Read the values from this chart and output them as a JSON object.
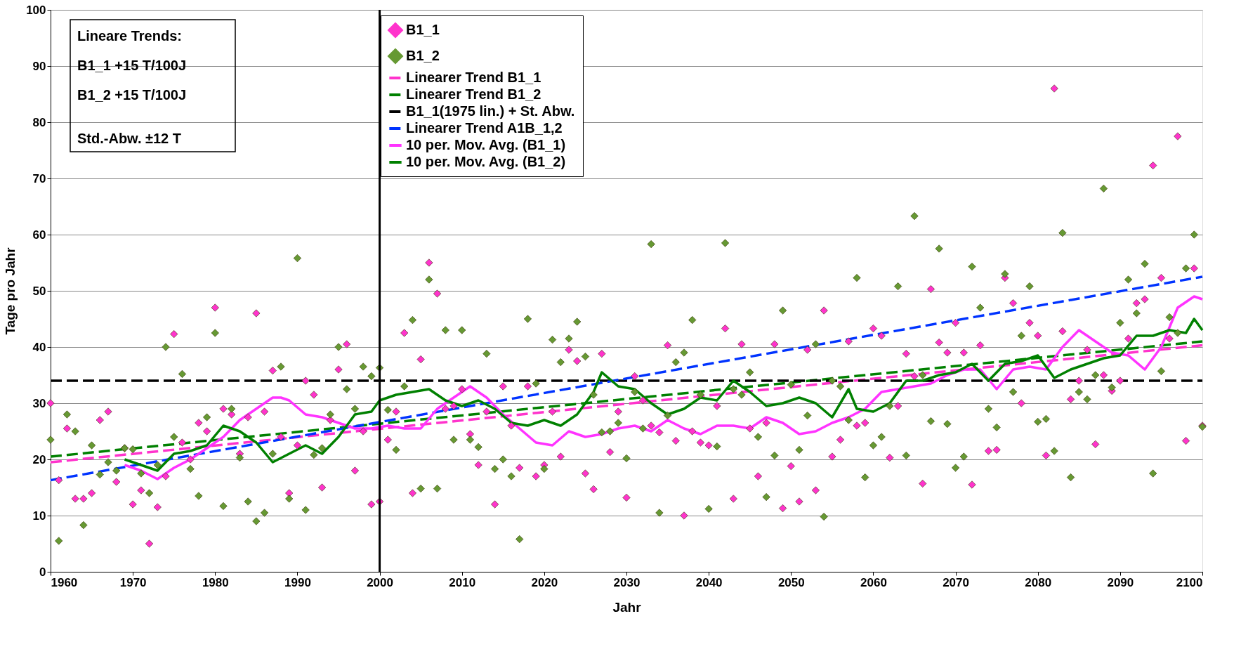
{
  "chart_data": {
    "type": "scatter",
    "xlabel": "Jahr",
    "ylabel": "Tage pro Jahr",
    "x": [
      1960,
      1961,
      1962,
      1963,
      1964,
      1965,
      1966,
      1967,
      1968,
      1969,
      1970,
      1971,
      1972,
      1973,
      1974,
      1975,
      1976,
      1977,
      1978,
      1979,
      1980,
      1981,
      1982,
      1983,
      1984,
      1985,
      1986,
      1987,
      1988,
      1989,
      1990,
      1991,
      1992,
      1993,
      1994,
      1995,
      1996,
      1997,
      1998,
      1999,
      2000,
      2001,
      2002,
      2003,
      2004,
      2005,
      2006,
      2007,
      2008,
      2009,
      2010,
      2011,
      2012,
      2013,
      2014,
      2015,
      2016,
      2017,
      2018,
      2019,
      2020,
      2021,
      2022,
      2023,
      2024,
      2025,
      2026,
      2027,
      2028,
      2029,
      2030,
      2031,
      2032,
      2033,
      2034,
      2035,
      2036,
      2037,
      2038,
      2039,
      2040,
      2041,
      2042,
      2043,
      2044,
      2045,
      2046,
      2047,
      2048,
      2049,
      2050,
      2051,
      2052,
      2053,
      2054,
      2055,
      2056,
      2057,
      2058,
      2059,
      2060,
      2061,
      2062,
      2063,
      2064,
      2065,
      2066,
      2067,
      2068,
      2069,
      2070,
      2071,
      2072,
      2073,
      2074,
      2075,
      2076,
      2077,
      2078,
      2079,
      2080,
      2081,
      2082,
      2083,
      2084,
      2085,
      2086,
      2087,
      2088,
      2089,
      2090,
      2091,
      2092,
      2093,
      2094,
      2095,
      2096,
      2097,
      2098,
      2099,
      2100
    ],
    "series": [
      {
        "name": "B1_1",
        "marker": "diamond",
        "color": "#ff33cc",
        "values": [
          30,
          16.3,
          25.5,
          13,
          13,
          14,
          27,
          28.5,
          16,
          22,
          12,
          14.5,
          5,
          11.5,
          17,
          42.3,
          23,
          20,
          26.5,
          25,
          47,
          29,
          28,
          21,
          27.5,
          46,
          28.5,
          35.8,
          24,
          14,
          22.5,
          34,
          31.5,
          15,
          27,
          36,
          40.5,
          18,
          25,
          12,
          12.5,
          23.5,
          28.5,
          42.5,
          14,
          37.8,
          55,
          49.5,
          29,
          29.5,
          32.5,
          24.5,
          19,
          28.5,
          12,
          33,
          26,
          18.5,
          33,
          17,
          19,
          28.5,
          20.5,
          39.5,
          37.5,
          17.5,
          14.7,
          38.8,
          21.3,
          28.5,
          13.2,
          34.8,
          30.5,
          26,
          24.8,
          40.3,
          23.3,
          10,
          25,
          23,
          22.5,
          29.5,
          43.3,
          13,
          40.5,
          25.5,
          17,
          26.5,
          40.5,
          11.3,
          18.8,
          12.5,
          39.5,
          14.5,
          46.5,
          20.5,
          23.5,
          41,
          26,
          26.5,
          43.3,
          42,
          20.3,
          29.5,
          38.8,
          34.8,
          15.7,
          50.3,
          40.8,
          39,
          44.3,
          39,
          15.5,
          40.3,
          21.5,
          21.7,
          52.3,
          47.8,
          30,
          44.3,
          42,
          20.7,
          86,
          42.8,
          30.7,
          34,
          39.5,
          22.7,
          35,
          32.2,
          34,
          41.5,
          47.8,
          48.5,
          72.3,
          52.3,
          41.5,
          77.5,
          23.3,
          54,
          26
        ]
      },
      {
        "name": "B1_2",
        "marker": "diamond",
        "color": "#669933",
        "values": [
          23.5,
          5.5,
          28,
          25,
          8.3,
          22.5,
          17.3,
          19.5,
          18,
          22,
          21.8,
          17.5,
          14,
          19,
          40,
          24,
          35.2,
          18.3,
          13.5,
          27.5,
          42.5,
          11.7,
          29,
          20.3,
          12.5,
          9,
          10.5,
          21,
          36.5,
          13,
          55.8,
          11,
          20.8,
          22,
          28,
          40,
          32.5,
          29,
          36.5,
          34.8,
          36.3,
          28.8,
          21.7,
          33,
          44.8,
          14.8,
          52,
          14.8,
          43,
          23.5,
          43,
          23.5,
          22.2,
          38.8,
          18.3,
          20,
          17,
          5.8,
          45,
          33.5,
          18.3,
          41.3,
          37.3,
          41.5,
          44.5,
          38.3,
          31.5,
          24.8,
          25,
          26.5,
          20.2,
          32,
          25.5,
          58.3,
          10.5,
          27.8,
          37.3,
          39,
          44.8,
          31.5,
          11.2,
          22.3,
          58.5,
          32.5,
          31.5,
          35.5,
          24,
          13.3,
          20.7,
          46.5,
          33.3,
          21.7,
          27.8,
          40.5,
          9.8,
          34,
          33,
          27,
          52.3,
          16.8,
          22.5,
          24,
          29.5,
          50.8,
          20.7,
          63.3,
          35,
          26.8,
          57.5,
          26.3,
          18.5,
          20.5,
          54.3,
          47,
          29,
          25.7,
          53,
          32,
          42,
          50.8,
          26.7,
          27.2,
          21.5,
          60.3,
          16.8,
          32,
          30.7,
          35,
          68.2,
          32.8,
          44.3,
          52,
          46,
          54.8,
          17.5,
          35.7,
          45.3,
          42.5,
          54,
          60,
          25.8
        ]
      },
      {
        "name": "Linearer Trend B1_1",
        "type": "line",
        "line_style": "dashed",
        "color": "#ff33cc",
        "x": [
          1960,
          2100
        ],
        "values": [
          19.5,
          40.3
        ]
      },
      {
        "name": "Linearer Trend B1_2",
        "type": "line",
        "line_style": "dashed",
        "color": "#008000",
        "x": [
          1960,
          2100
        ],
        "values": [
          20.5,
          41
        ]
      },
      {
        "name": "B1_1(1975 lin.) + St. Abw.",
        "type": "line",
        "line_style": "dashed",
        "color": "#000000",
        "x": [
          1960,
          2100
        ],
        "values": [
          34,
          34
        ]
      },
      {
        "name": "Linearer Trend A1B_1,2",
        "type": "line",
        "line_style": "dashed",
        "color": "#0033ff",
        "x": [
          1960,
          2100
        ],
        "values": [
          16.3,
          52.5
        ]
      },
      {
        "name": "10 per. Mov. Avg. (B1_1)",
        "type": "line",
        "line_style": "solid",
        "color": "#ff33ff",
        "x": [
          1969,
          1971,
          1973,
          1975,
          1977,
          1979,
          1981,
          1983,
          1985,
          1987,
          1988,
          1989,
          1991,
          1993,
          1995,
          1997,
          1999,
          2001,
          2003,
          2005,
          2007,
          2009,
          2011,
          2013,
          2015,
          2017,
          2019,
          2021,
          2023,
          2025,
          2027,
          2029,
          2031,
          2033,
          2035,
          2037,
          2039,
          2041,
          2043,
          2045,
          2047,
          2049,
          2051,
          2053,
          2055,
          2057,
          2059,
          2061,
          2063,
          2065,
          2067,
          2069,
          2071,
          2073,
          2075,
          2077,
          2079,
          2081,
          2083,
          2085,
          2087,
          2089,
          2091,
          2093,
          2095,
          2097,
          2099,
          2100
        ],
        "values": [
          19,
          18,
          16.5,
          18.5,
          20,
          22,
          24,
          27,
          29,
          31,
          31,
          30.5,
          28,
          27.5,
          26.5,
          25.5,
          25.5,
          26,
          25.5,
          25.5,
          29,
          31,
          33,
          31,
          28,
          25.5,
          23,
          22.5,
          25,
          24,
          24.5,
          25.5,
          26,
          25,
          27,
          25.5,
          24.5,
          26,
          26,
          25.5,
          27.5,
          26.5,
          24.5,
          25,
          26.5,
          27.5,
          29,
          32,
          32.5,
          33,
          33.5,
          35,
          36,
          36,
          32.5,
          36,
          36.5,
          36,
          40,
          43,
          41,
          39,
          38.5,
          36,
          40,
          47,
          49,
          48.5
        ]
      },
      {
        "name": "10 per. Mov. Avg. (B1_2)",
        "type": "line",
        "line_style": "solid",
        "color": "#008000",
        "x": [
          1969,
          1971,
          1973,
          1975,
          1977,
          1979,
          1981,
          1983,
          1985,
          1987,
          1989,
          1991,
          1993,
          1995,
          1997,
          1999,
          2000,
          2002,
          2004,
          2006,
          2008,
          2010,
          2012,
          2014,
          2016,
          2018,
          2020,
          2022,
          2024,
          2026,
          2027,
          2029,
          2031,
          2033,
          2035,
          2037,
          2039,
          2041,
          2043,
          2045,
          2047,
          2049,
          2051,
          2053,
          2055,
          2057,
          2058,
          2060,
          2062,
          2064,
          2066,
          2068,
          2070,
          2072,
          2074,
          2076,
          2078,
          2080,
          2082,
          2084,
          2086,
          2088,
          2090,
          2092,
          2094,
          2096,
          2098,
          2099,
          2100
        ],
        "values": [
          20,
          19,
          18,
          21,
          21.5,
          22.5,
          26,
          25,
          23,
          19.5,
          21,
          22.5,
          21,
          24,
          28,
          28.5,
          30.5,
          31.5,
          32,
          32.5,
          30.5,
          29.5,
          30.5,
          29,
          26.5,
          26,
          27,
          26,
          28,
          32,
          35.5,
          33,
          32.5,
          30,
          28,
          29,
          31,
          30.5,
          34,
          32,
          29.5,
          30,
          31,
          30,
          27.5,
          32.5,
          29,
          28.5,
          30,
          34,
          34,
          35,
          35.5,
          37,
          34,
          37,
          37.5,
          38.5,
          34.5,
          36,
          37,
          38,
          38.5,
          42,
          42,
          43,
          42.5,
          45,
          43
        ]
      }
    ],
    "xlim": [
      1960,
      2100
    ],
    "xticks": [
      1960,
      1970,
      1980,
      1990,
      2000,
      2010,
      2020,
      2030,
      2040,
      2050,
      2060,
      2070,
      2080,
      2090,
      2100
    ],
    "ylim": [
      0,
      100
    ],
    "yticks": [
      0,
      10,
      20,
      30,
      40,
      50,
      60,
      70,
      80,
      90,
      100
    ],
    "grid": "y",
    "legend": "top",
    "ref_lines": [
      {
        "axis": "x",
        "value": 2000,
        "color": "#000000"
      }
    ],
    "annotations": [
      "Lineare Trends:",
      "B1_1   +15 T/100J",
      "B1_2   +15 T/100J",
      "Std.-Abw.  ±12 T"
    ]
  }
}
